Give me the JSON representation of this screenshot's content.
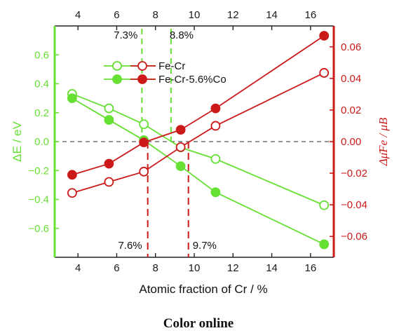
{
  "colors": {
    "left_axis": "#66e033",
    "right_axis": "#cc1a1a",
    "frame": "#222222",
    "zero_line": "#555555"
  },
  "chart_data": {
    "type": "line",
    "xlabel": "Atomic fraction of Cr / %",
    "ylabel_left": "ΔE / eV",
    "ylabel_right": "Δμ̄Fe / μB",
    "xlim": [
      2.8,
      17.2
    ],
    "ylim_left": [
      -0.8,
      0.8
    ],
    "ylim_right": [
      -0.0732,
      0.0732
    ],
    "x_ticks": [
      4,
      6,
      8,
      10,
      12,
      14,
      16
    ],
    "x_ticks_top": [
      4,
      6,
      8,
      10,
      12,
      14,
      16
    ],
    "y_ticks_left": [
      -0.6,
      -0.4,
      -0.2,
      0.0,
      0.2,
      0.4,
      0.6
    ],
    "y_ticks_right": [
      -0.06,
      -0.04,
      -0.02,
      0.0,
      0.02,
      0.04,
      0.06
    ],
    "y_tick_labels_left": [
      "−0.6",
      "−0.4",
      "−0.2",
      "0.0",
      "0.2",
      "0.4",
      "0.6"
    ],
    "y_tick_labels_right": [
      "−0.06",
      "−0.04",
      "−0.02",
      "0.00",
      "0.02",
      "0.04",
      "0.06"
    ],
    "legend": [
      "Fe-Cr",
      "Fe-Cr-5.6%Co"
    ],
    "legend_position": "top-center",
    "zero_line": true,
    "series": [
      {
        "name": "Fe-Cr",
        "axis": "left",
        "color": "#66e033",
        "marker": "open",
        "x": [
          3.7,
          5.6,
          7.4,
          9.3,
          11.1,
          16.7
        ],
        "values": [
          0.33,
          0.23,
          0.12,
          -0.04,
          -0.12,
          -0.44
        ]
      },
      {
        "name": "Fe-Cr-5.6%Co",
        "axis": "left",
        "color": "#66e033",
        "marker": "filled",
        "x": [
          3.7,
          5.6,
          7.4,
          9.3,
          11.1,
          16.7
        ],
        "values": [
          0.3,
          0.15,
          0.01,
          -0.17,
          -0.35,
          -0.71
        ]
      },
      {
        "name": "Fe-Cr",
        "axis": "right",
        "color": "#cc1a1a",
        "marker": "open",
        "x": [
          3.7,
          5.6,
          7.4,
          9.3,
          11.1,
          16.7
        ],
        "values": [
          -0.0325,
          -0.0255,
          -0.019,
          -0.0035,
          0.01,
          0.0435
        ]
      },
      {
        "name": "Fe-Cr-5.6%Co",
        "axis": "right",
        "color": "#cc1a1a",
        "marker": "filled",
        "x": [
          3.7,
          5.6,
          7.4,
          9.3,
          11.1,
          16.7
        ],
        "values": [
          -0.021,
          -0.014,
          -0.0005,
          0.0075,
          0.021,
          0.067
        ]
      }
    ],
    "crossings": [
      {
        "label": "7.3%",
        "x": 7.3,
        "color": "#66e033",
        "side": "top"
      },
      {
        "label": "8.8%",
        "x": 8.8,
        "color": "#66e033",
        "side": "top"
      },
      {
        "label": "7.6%",
        "x": 7.6,
        "color": "#cc1a1a",
        "side": "bottom"
      },
      {
        "label": "9.7%",
        "x": 9.7,
        "color": "#cc1a1a",
        "side": "bottom"
      }
    ]
  },
  "caption": "Color online"
}
